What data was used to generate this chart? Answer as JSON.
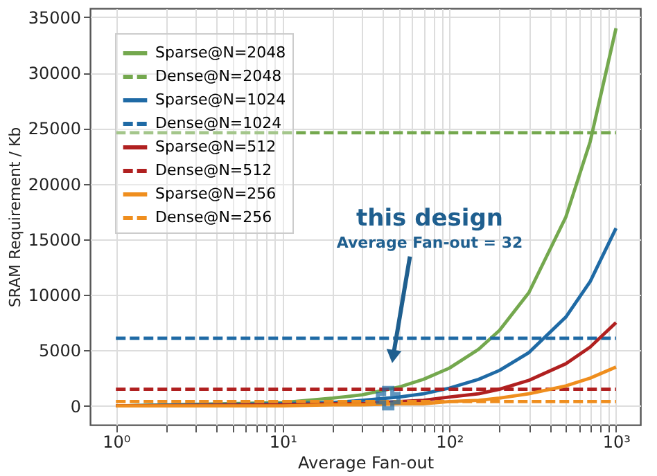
{
  "chart_data": {
    "type": "line",
    "xlabel": "Average Fan-out",
    "ylabel": "SRAM Requirement / Kb",
    "log": "x",
    "grid": true,
    "legend": "top left",
    "marker": "none",
    "xlim": [
      0.7,
      1400
    ],
    "ylim": [
      -1700,
      35800
    ],
    "xticks": [
      {
        "value": 1,
        "label": "10⁰"
      },
      {
        "value": 2,
        "label": null
      },
      {
        "value": 3,
        "label": null
      },
      {
        "value": 4,
        "label": null
      },
      {
        "value": 5,
        "label": null
      },
      {
        "value": 6,
        "label": null
      },
      {
        "value": 7,
        "label": null
      },
      {
        "value": 8,
        "label": null
      },
      {
        "value": 9,
        "label": null
      },
      {
        "value": 10,
        "label": "10¹"
      },
      {
        "value": 20,
        "label": null
      },
      {
        "value": 30,
        "label": null
      },
      {
        "value": 40,
        "label": null
      },
      {
        "value": 50,
        "label": null
      },
      {
        "value": 60,
        "label": null
      },
      {
        "value": 70,
        "label": null
      },
      {
        "value": 80,
        "label": null
      },
      {
        "value": 90,
        "label": null
      },
      {
        "value": 100,
        "label": "10²"
      },
      {
        "value": 200,
        "label": null
      },
      {
        "value": 300,
        "label": null
      },
      {
        "value": 400,
        "label": null
      },
      {
        "value": 500,
        "label": null
      },
      {
        "value": 600,
        "label": null
      },
      {
        "value": 700,
        "label": null
      },
      {
        "value": 800,
        "label": null
      },
      {
        "value": 900,
        "label": null
      },
      {
        "value": 1000,
        "label": "10³"
      }
    ],
    "yticks": [
      0,
      5000,
      10000,
      15000,
      20000,
      25000,
      30000,
      35000
    ],
    "x": [
      1,
      10,
      20,
      30,
      50,
      70,
      100,
      150,
      200,
      300,
      500,
      700,
      1000
    ],
    "series": [
      {
        "name": "Sparse@N=2048",
        "color": "#74a84e",
        "line_style": "solid",
        "values": [
          0,
          300,
          700,
          1000,
          1700,
          2400,
          3400,
          5100,
          6800,
          10200,
          17000,
          23800,
          34000
        ]
      },
      {
        "name": "Dense@N=2048",
        "color": "#74a84e",
        "line_style": "dashed",
        "x": [
          1,
          1000
        ],
        "values": [
          24600,
          24600
        ]
      },
      {
        "name": "Sparse@N=1024",
        "color": "#1f6aa5",
        "line_style": "solid",
        "values": [
          0,
          200,
          300,
          500,
          800,
          1100,
          1600,
          2400,
          3200,
          4800,
          8000,
          11200,
          16000
        ]
      },
      {
        "name": "Dense@N=1024",
        "color": "#1f6aa5",
        "line_style": "dashed",
        "x": [
          1,
          1000
        ],
        "values": [
          6100,
          6100
        ]
      },
      {
        "name": "Sparse@N=512",
        "color": "#b02020",
        "line_style": "solid",
        "values": [
          0,
          100,
          200,
          200,
          400,
          500,
          800,
          1100,
          1500,
          2300,
          3800,
          5300,
          7500
        ]
      },
      {
        "name": "Dense@N=512",
        "color": "#b02020",
        "line_style": "dashed",
        "x": [
          1,
          1000
        ],
        "values": [
          1500,
          1500
        ]
      },
      {
        "name": "Sparse@N=256",
        "color": "#ef8e1e",
        "line_style": "solid",
        "values": [
          0,
          0,
          100,
          100,
          200,
          200,
          400,
          500,
          700,
          1100,
          1800,
          2500,
          3500
        ]
      },
      {
        "name": "Dense@N=256",
        "color": "#ef8e1e",
        "line_style": "dashed",
        "x": [
          1,
          1000
        ],
        "values": [
          400,
          400
        ]
      },
      {
        "type": "scatter",
        "marker": "cross",
        "color": "#1f6aa5",
        "x": [
          43
        ],
        "values": [
          700
        ]
      }
    ],
    "annotations": [
      "this design",
      "Average Fan-out = 32"
    ]
  }
}
